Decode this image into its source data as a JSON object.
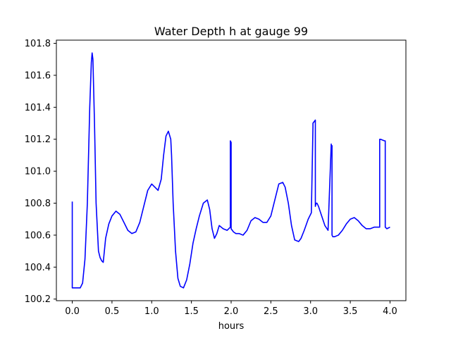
{
  "chart_data": {
    "type": "line",
    "title": "Water Depth h at gauge 99",
    "xlabel": "hours",
    "ylabel": "",
    "xlim": [
      -0.2,
      4.2
    ],
    "ylim": [
      100.19,
      101.82
    ],
    "xticks": [
      0.0,
      0.5,
      1.0,
      1.5,
      2.0,
      2.5,
      3.0,
      3.5,
      4.0
    ],
    "xtick_labels": [
      "0.0",
      "0.5",
      "1.0",
      "1.5",
      "2.0",
      "2.5",
      "3.0",
      "3.5",
      "4.0"
    ],
    "yticks": [
      100.2,
      100.4,
      100.6,
      100.8,
      101.0,
      101.2,
      101.4,
      101.6,
      101.8
    ],
    "ytick_labels": [
      "100.2",
      "100.4",
      "100.6",
      "100.8",
      "101.0",
      "101.2",
      "101.4",
      "101.6",
      "101.8"
    ],
    "grid": false,
    "series": [
      {
        "color": "#0000ff",
        "x": [
          0.0,
          0.0,
          0.03,
          0.1,
          0.13,
          0.16,
          0.19,
          0.22,
          0.24,
          0.25,
          0.26,
          0.28,
          0.3,
          0.33,
          0.35,
          0.37,
          0.39,
          0.42,
          0.46,
          0.5,
          0.55,
          0.6,
          0.65,
          0.7,
          0.75,
          0.8,
          0.85,
          0.9,
          0.95,
          1.0,
          1.04,
          1.08,
          1.12,
          1.15,
          1.18,
          1.21,
          1.24,
          1.25,
          1.27,
          1.3,
          1.33,
          1.36,
          1.4,
          1.44,
          1.48,
          1.52,
          1.56,
          1.6,
          1.65,
          1.7,
          1.73,
          1.76,
          1.79,
          1.82,
          1.85,
          1.9,
          1.95,
          1.99,
          1.99,
          2.0,
          2.0,
          2.03,
          2.06,
          2.1,
          2.15,
          2.2,
          2.25,
          2.3,
          2.35,
          2.4,
          2.45,
          2.5,
          2.55,
          2.6,
          2.65,
          2.68,
          2.72,
          2.76,
          2.8,
          2.85,
          2.88,
          2.92,
          2.97,
          3.01,
          3.03,
          3.03,
          3.06,
          3.06,
          3.07,
          3.08,
          3.1,
          3.14,
          3.18,
          3.22,
          3.26,
          3.26,
          3.27,
          3.27,
          3.28,
          3.3,
          3.35,
          3.4,
          3.45,
          3.5,
          3.55,
          3.6,
          3.65,
          3.7,
          3.75,
          3.8,
          3.87,
          3.87,
          3.88,
          3.93,
          3.94,
          3.94,
          3.96,
          4.0
        ],
        "y": [
          100.81,
          100.27,
          100.27,
          100.27,
          100.3,
          100.45,
          100.8,
          101.4,
          101.68,
          101.74,
          101.7,
          101.3,
          100.8,
          100.5,
          100.46,
          100.44,
          100.43,
          100.58,
          100.67,
          100.72,
          100.75,
          100.73,
          100.68,
          100.63,
          100.61,
          100.62,
          100.68,
          100.78,
          100.88,
          100.92,
          100.9,
          100.88,
          100.95,
          101.1,
          101.22,
          101.25,
          101.2,
          101.1,
          100.8,
          100.5,
          100.33,
          100.28,
          100.27,
          100.32,
          100.42,
          100.55,
          100.64,
          100.72,
          100.8,
          100.82,
          100.76,
          100.64,
          100.58,
          100.61,
          100.66,
          100.64,
          100.63,
          100.65,
          101.19,
          101.18,
          100.64,
          100.62,
          100.61,
          100.61,
          100.6,
          100.63,
          100.69,
          100.71,
          100.7,
          100.68,
          100.68,
          100.72,
          100.82,
          100.92,
          100.93,
          100.9,
          100.8,
          100.66,
          100.57,
          100.56,
          100.58,
          100.63,
          100.7,
          100.74,
          101.28,
          101.3,
          101.32,
          100.78,
          100.8,
          100.8,
          100.78,
          100.72,
          100.66,
          100.63,
          101.17,
          101.16,
          101.16,
          100.6,
          100.59,
          100.59,
          100.6,
          100.63,
          100.67,
          100.7,
          100.71,
          100.69,
          100.66,
          100.64,
          100.64,
          100.65,
          100.65,
          101.2,
          101.2,
          101.19,
          101.19,
          100.65,
          100.64,
          100.65
        ]
      }
    ]
  }
}
